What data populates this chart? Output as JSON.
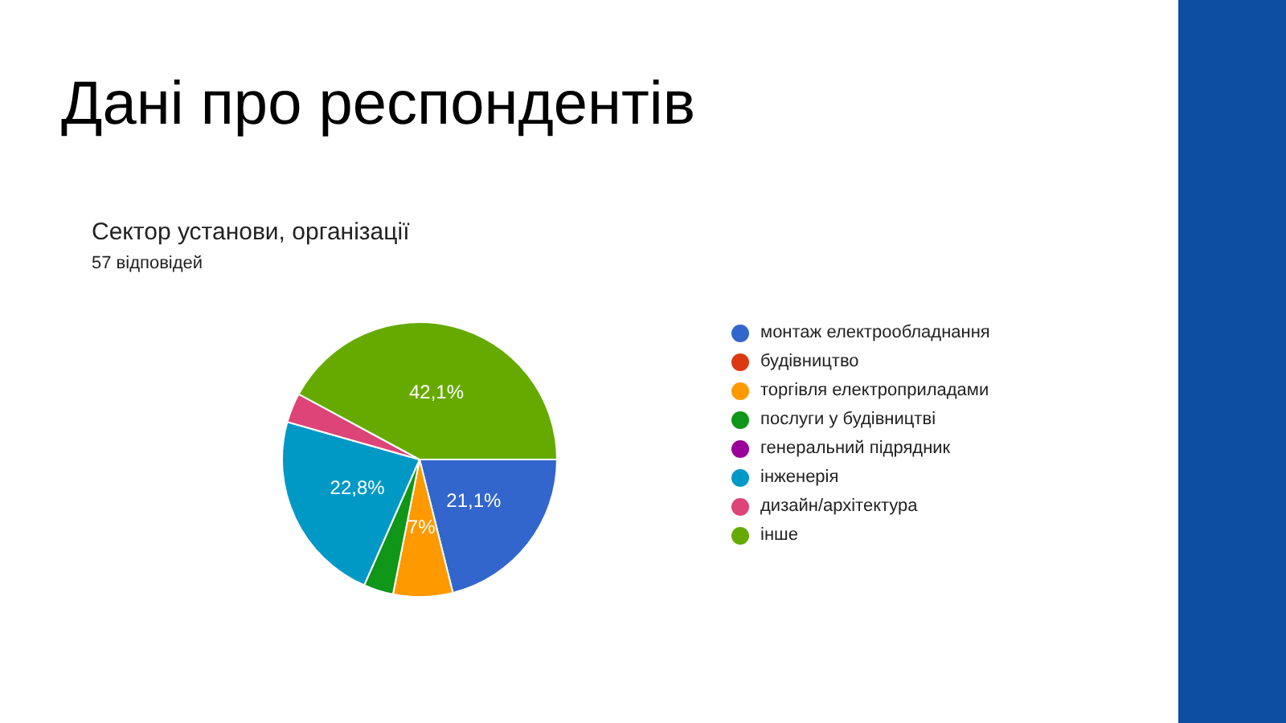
{
  "chart_data": {
    "type": "pie",
    "title": "Сектор установи, організації",
    "subtitle": "57 відповідей",
    "annotations": [
      "Дані про респондентів"
    ],
    "categories": [
      "монтаж електрообладнання",
      "будівництво",
      "торгівля електроприладами",
      "послуги у будівництві",
      "генеральний підрядник",
      "інженерія",
      "дизайн/архітектура",
      "інше"
    ],
    "values": [
      21.1,
      0,
      7,
      3.5,
      0,
      22.8,
      3.5,
      42.1
    ],
    "colors": [
      "#3366cc",
      "#dc3912",
      "#ff9900",
      "#109618",
      "#990099",
      "#0099c6",
      "#dd4477",
      "#66aa00"
    ],
    "value_labels": [
      "21,1%",
      null,
      "7%",
      null,
      null,
      "22,8%",
      null,
      "42,1%"
    ],
    "legend": "right"
  }
}
